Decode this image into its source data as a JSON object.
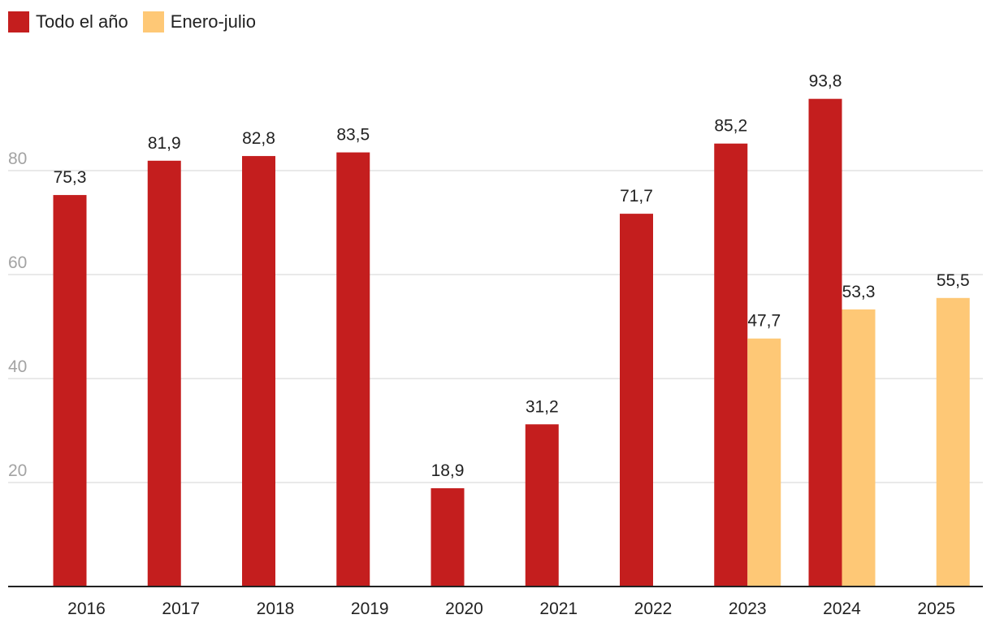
{
  "chart_data": {
    "type": "bar",
    "title": "",
    "xlabel": "",
    "ylabel": "",
    "categories": [
      "2016",
      "2017",
      "2018",
      "2019",
      "2020",
      "2021",
      "2022",
      "2023",
      "2024",
      "2025"
    ],
    "series": [
      {
        "name": "Todo el año",
        "color": "#c41e1e",
        "values": [
          75.3,
          81.9,
          82.8,
          83.5,
          18.9,
          31.2,
          71.7,
          85.2,
          93.8,
          null
        ],
        "labels": [
          "75,3",
          "81,9",
          "82,8",
          "83,5",
          "18,9",
          "31,2",
          "71,7",
          "85,2",
          "93,8",
          null
        ]
      },
      {
        "name": "Enero-julio",
        "color": "#fec876",
        "values": [
          null,
          null,
          null,
          null,
          null,
          null,
          null,
          47.7,
          53.3,
          55.5
        ],
        "labels": [
          null,
          null,
          null,
          null,
          null,
          null,
          null,
          "47,7",
          "53,3",
          "55,5"
        ]
      }
    ],
    "yticks": [
      20,
      40,
      60,
      80
    ],
    "ylim": [
      0,
      100
    ],
    "grid": true,
    "legend_position": "top-left"
  }
}
